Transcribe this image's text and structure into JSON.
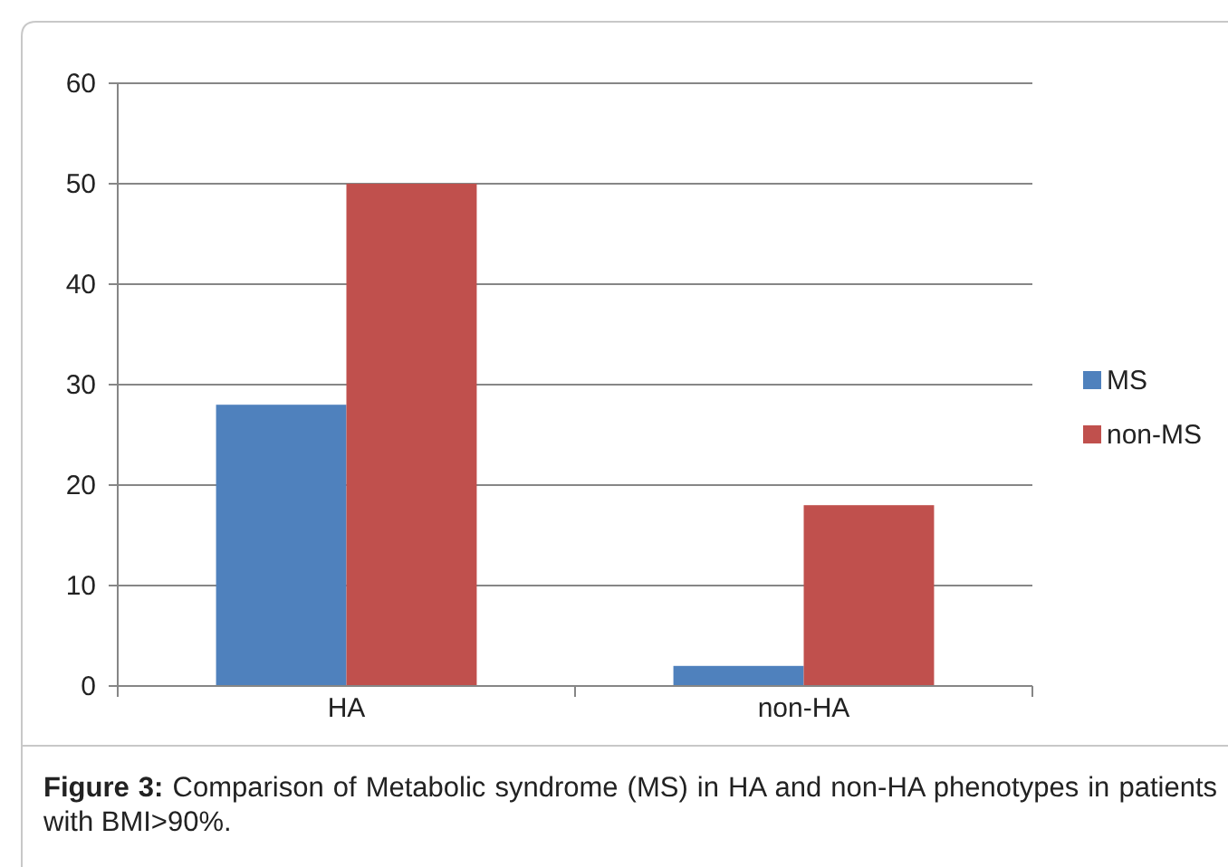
{
  "chart_data": {
    "type": "bar",
    "categories": [
      "HA",
      "non-HA"
    ],
    "series": [
      {
        "name": "MS",
        "color": "#4f81bd",
        "values": [
          28,
          2
        ]
      },
      {
        "name": "non-MS",
        "color": "#c0504d",
        "values": [
          50,
          18
        ]
      }
    ],
    "ylim": [
      0,
      60
    ],
    "yticks": [
      0,
      10,
      20,
      30,
      40,
      50,
      60
    ],
    "grid": "y",
    "legend": "right",
    "annotations": [
      "Figure 3: Comparison of Metabolic syndrome (MS) in HA and non-HA phenotypes in patients with BMI>90%."
    ]
  }
}
